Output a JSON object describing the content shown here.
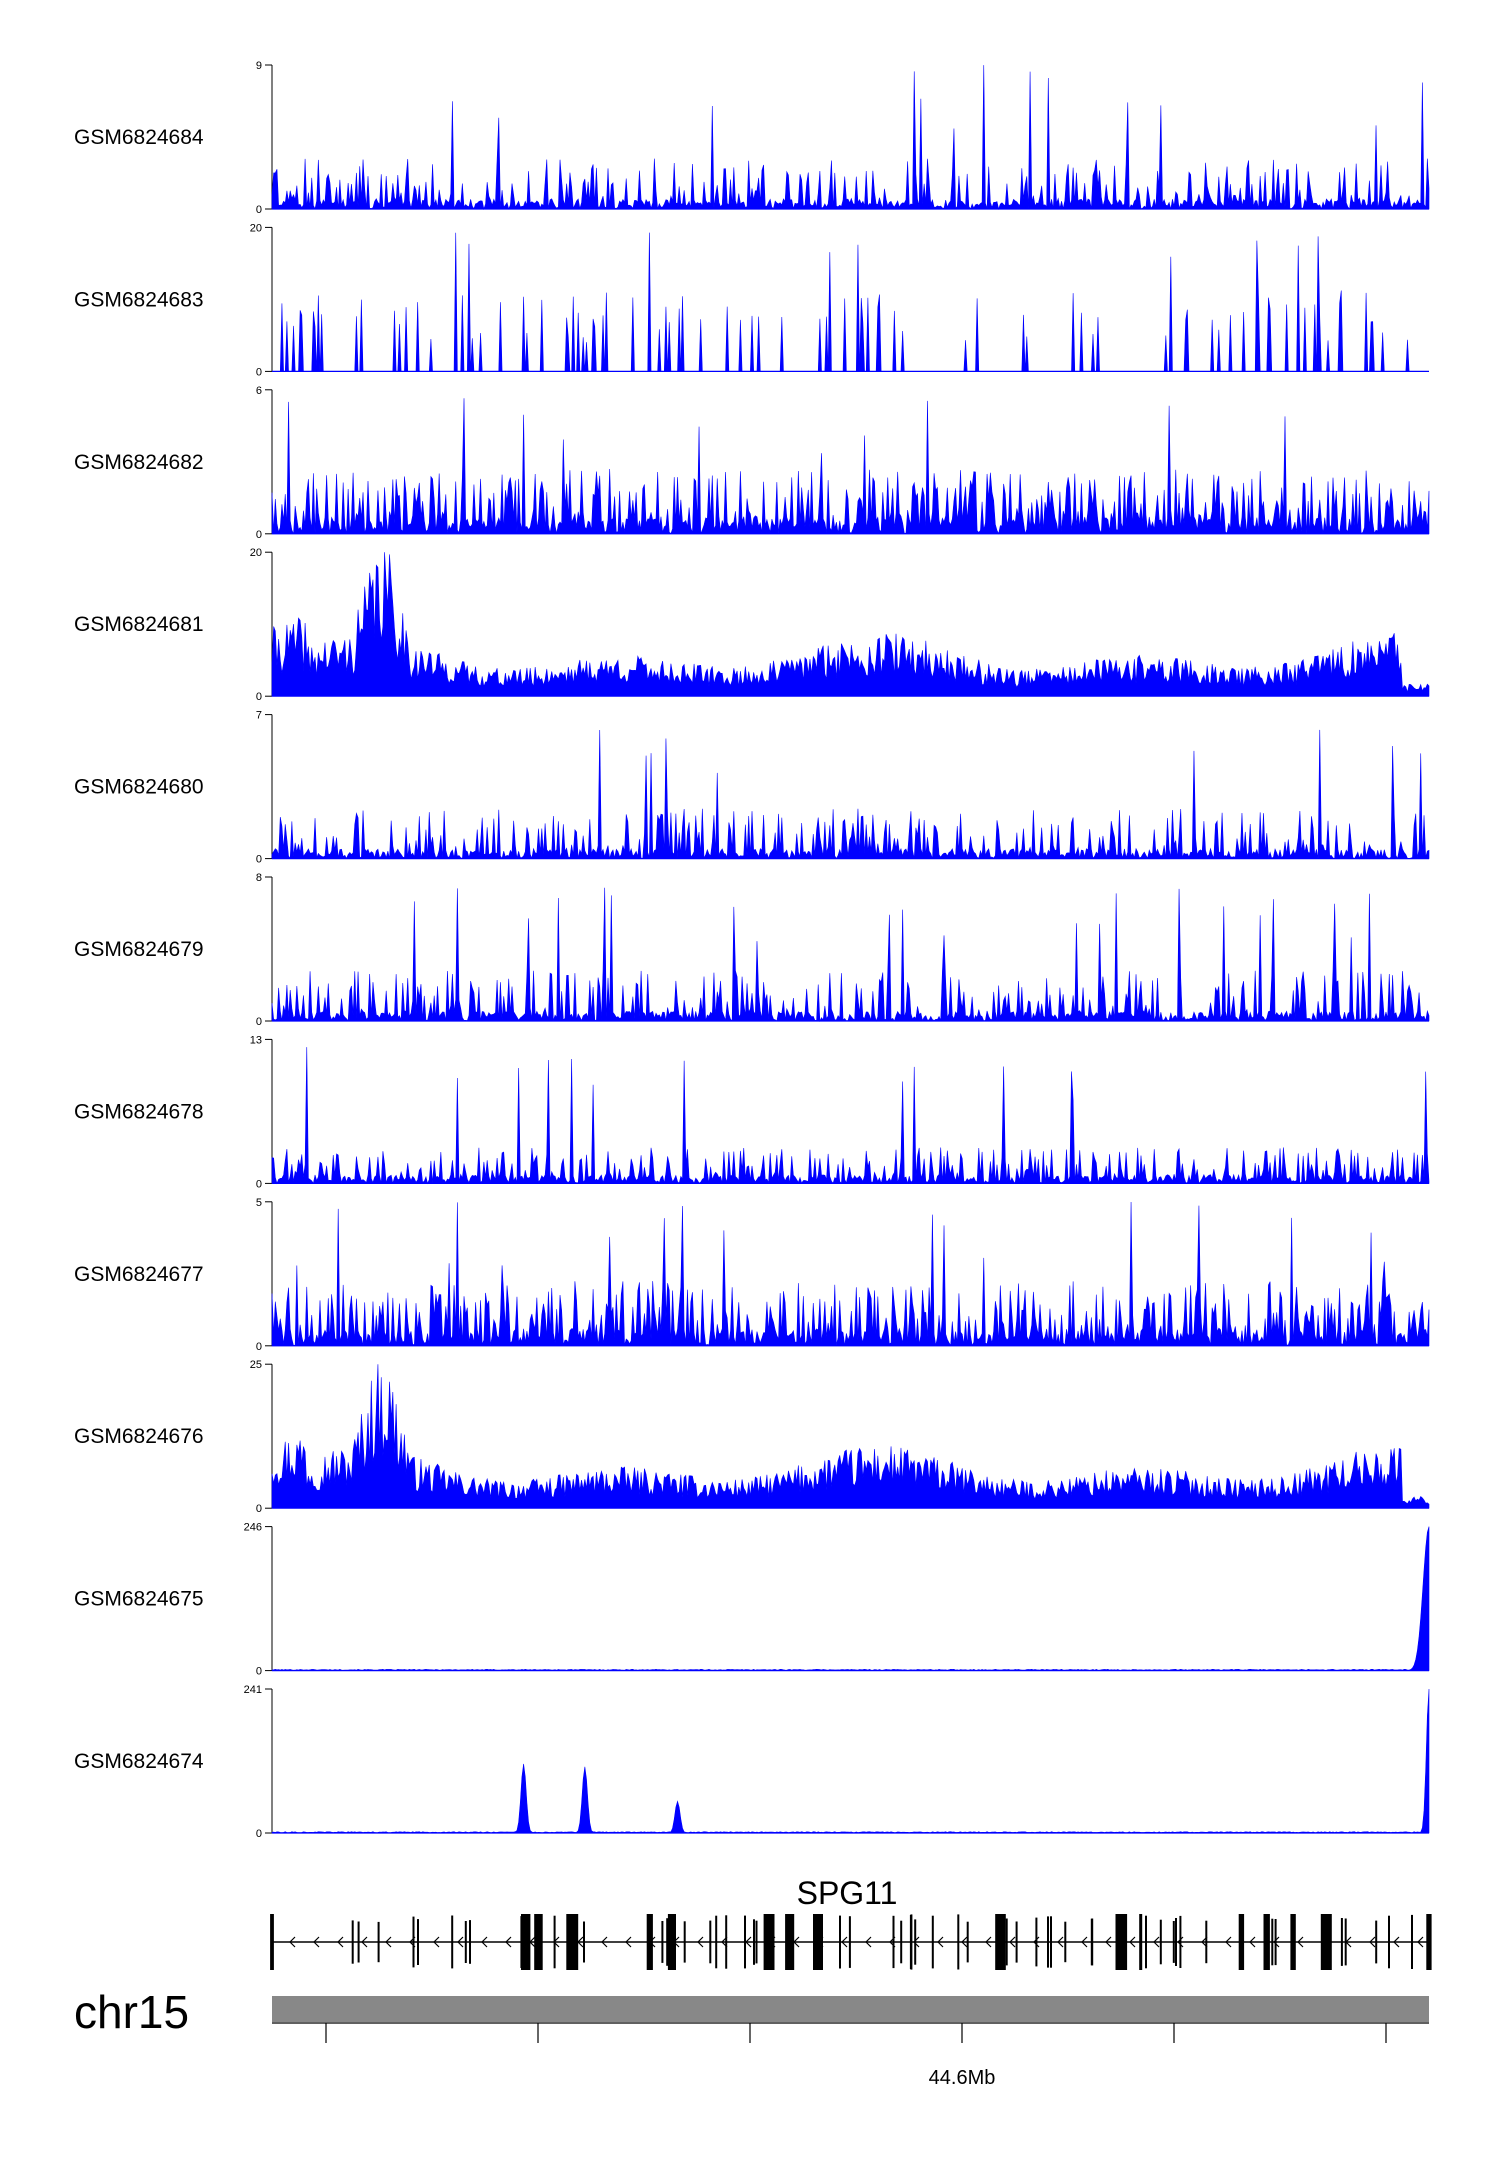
{
  "chart_data": {
    "type": "area",
    "series_color": "#0000ff",
    "gene_color": "#000000",
    "ideogram_color": "#888888",
    "tracks": [
      {
        "name": "GSM6824684",
        "ymax": 9,
        "ymin": 0,
        "shape": "spiky",
        "seed": 11
      },
      {
        "name": "GSM6824683",
        "ymax": 20,
        "ymin": 0,
        "shape": "sparse",
        "seed": 23
      },
      {
        "name": "GSM6824682",
        "ymax": 6,
        "ymin": 0,
        "shape": "dense",
        "seed": 37
      },
      {
        "name": "GSM6824681",
        "ymax": 20,
        "ymin": 0,
        "shape": "broad",
        "seed": 41
      },
      {
        "name": "GSM6824680",
        "ymax": 7,
        "ymin": 0,
        "shape": "spiky",
        "seed": 53
      },
      {
        "name": "GSM6824679",
        "ymax": 8,
        "ymin": 0,
        "shape": "spiky",
        "seed": 67
      },
      {
        "name": "GSM6824678",
        "ymax": 13,
        "ymin": 0,
        "shape": "low",
        "seed": 71
      },
      {
        "name": "GSM6824677",
        "ymax": 5,
        "ymin": 0,
        "shape": "dense",
        "seed": 83
      },
      {
        "name": "GSM6824676",
        "ymax": 25,
        "ymin": 0,
        "shape": "broad",
        "seed": 97
      },
      {
        "name": "GSM6824675",
        "ymax": 246,
        "ymin": 0,
        "shape": "peak_end",
        "seed": 101
      },
      {
        "name": "GSM6824674",
        "ymax": 241,
        "ymin": 0,
        "shape": "peaks",
        "seed": 113,
        "peaks": [
          {
            "x": 0.218,
            "y": 0.48
          },
          {
            "x": 0.271,
            "y": 0.46
          },
          {
            "x": 0.351,
            "y": 0.22
          },
          {
            "x": 1.0,
            "y": 1.0
          }
        ]
      }
    ],
    "gene": {
      "name": "SPG11",
      "strand": "-"
    },
    "chromosome": "chr15",
    "x_axis": {
      "tick_labels": [
        {
          "position": 3,
          "label": "44.6Mb"
        }
      ],
      "num_ticks": 6
    }
  }
}
